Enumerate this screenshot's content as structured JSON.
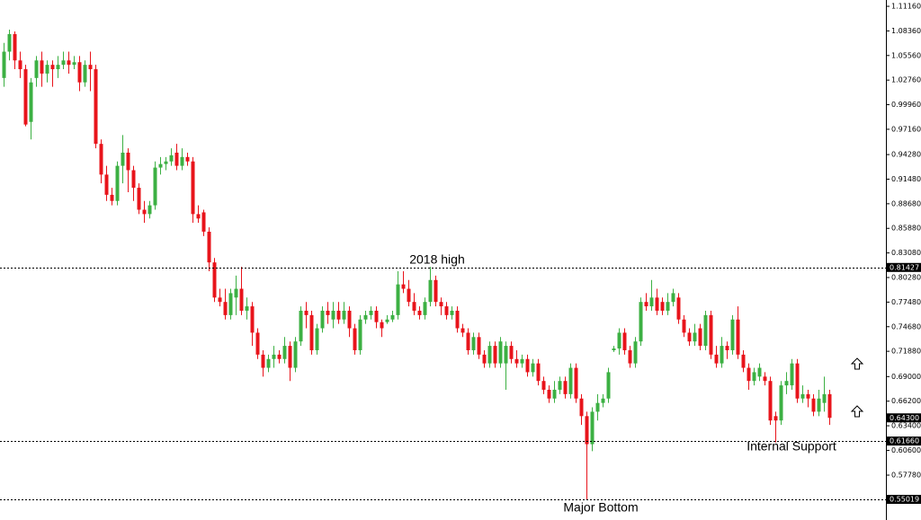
{
  "chart_data": {
    "type": "candlestick",
    "open": [
      1.03,
      1.06,
      1.08,
      1.05,
      1.04,
      0.98,
      1.03,
      1.05,
      1.035,
      1.045,
      1.04,
      1.045,
      1.05,
      1.045,
      1.048,
      1.025,
      1.045,
      1.04,
      0.955,
      0.92,
      0.897,
      0.89,
      0.93,
      0.945,
      0.925,
      0.905,
      0.88,
      0.875,
      0.885,
      0.928,
      0.932,
      0.935,
      0.945,
      0.93,
      0.94,
      0.935,
      0.875,
      0.877,
      0.855,
      0.82,
      0.78,
      0.775,
      0.76,
      0.78,
      0.79,
      0.765,
      0.77,
      0.74,
      0.715,
      0.7,
      0.71,
      0.715,
      0.71,
      0.725,
      0.7,
      0.73,
      0.765,
      0.76,
      0.72,
      0.745,
      0.765,
      0.755,
      0.765,
      0.755,
      0.765,
      0.745,
      0.72,
      0.755,
      0.76,
      0.765,
      0.752,
      0.752,
      0.755,
      0.76,
      0.795,
      0.79,
      0.775,
      0.765,
      0.76,
      0.775,
      0.8,
      0.775,
      0.77,
      0.76,
      0.765,
      0.745,
      0.74,
      0.72,
      0.735,
      0.715,
      0.705,
      0.725,
      0.705,
      0.705,
      0.725,
      0.71,
      0.705,
      0.71,
      0.695,
      0.705,
      0.685,
      0.675,
      0.665,
      0.675,
      0.685,
      0.67,
      0.7,
      0.665,
      0.645,
      0.613,
      0.65,
      0.66,
      0.665,
      0.72,
      0.722,
      0.74,
      0.72,
      0.705,
      0.73,
      0.775,
      0.77,
      0.78,
      0.775,
      0.765,
      0.775,
      0.78,
      0.755,
      0.74,
      0.73,
      0.745,
      0.725,
      0.76,
      0.715,
      0.705,
      0.725,
      0.72,
      0.755,
      0.715,
      0.7,
      0.685,
      0.69,
      0.69,
      0.685,
      0.645,
      0.64,
      0.68,
      0.68,
      0.705,
      0.665,
      0.67,
      0.665,
      0.65,
      0.66,
      0.67
    ],
    "high": [
      1.07,
      1.085,
      1.083,
      1.06,
      1.045,
      1.03,
      1.055,
      1.06,
      1.05,
      1.05,
      1.055,
      1.06,
      1.06,
      1.055,
      1.055,
      1.05,
      1.06,
      1.045,
      0.96,
      0.93,
      0.905,
      0.935,
      0.965,
      0.95,
      0.93,
      0.91,
      0.89,
      0.89,
      0.935,
      0.94,
      0.94,
      0.95,
      0.955,
      0.95,
      0.945,
      0.94,
      0.885,
      0.88,
      0.86,
      0.825,
      0.79,
      0.79,
      0.79,
      0.805,
      0.815,
      0.78,
      0.775,
      0.745,
      0.72,
      0.715,
      0.725,
      0.72,
      0.735,
      0.73,
      0.735,
      0.77,
      0.775,
      0.765,
      0.75,
      0.77,
      0.775,
      0.775,
      0.775,
      0.775,
      0.77,
      0.75,
      0.76,
      0.765,
      0.77,
      0.77,
      0.755,
      0.76,
      0.765,
      0.81,
      0.81,
      0.8,
      0.785,
      0.77,
      0.78,
      0.815,
      0.805,
      0.78,
      0.775,
      0.77,
      0.77,
      0.75,
      0.745,
      0.74,
      0.74,
      0.72,
      0.73,
      0.73,
      0.735,
      0.73,
      0.73,
      0.72,
      0.715,
      0.715,
      0.71,
      0.71,
      0.69,
      0.68,
      0.685,
      0.69,
      0.69,
      0.705,
      0.705,
      0.67,
      0.65,
      0.655,
      0.67,
      0.67,
      0.7,
      0.725,
      0.745,
      0.745,
      0.725,
      0.735,
      0.78,
      0.785,
      0.8,
      0.79,
      0.78,
      0.785,
      0.79,
      0.785,
      0.76,
      0.745,
      0.75,
      0.75,
      0.765,
      0.765,
      0.725,
      0.735,
      0.73,
      0.76,
      0.77,
      0.72,
      0.705,
      0.7,
      0.705,
      0.695,
      0.69,
      0.65,
      0.685,
      0.695,
      0.71,
      0.71,
      0.68,
      0.675,
      0.67,
      0.675,
      0.69,
      0.675
    ],
    "low": [
      1.02,
      1.05,
      1.04,
      1.03,
      0.975,
      0.96,
      1.02,
      1.02,
      1.025,
      1.02,
      1.03,
      1.04,
      1.035,
      1.04,
      1.015,
      1.02,
      1.015,
      0.95,
      0.91,
      0.89,
      0.885,
      0.885,
      0.91,
      0.9,
      0.89,
      0.875,
      0.865,
      0.87,
      0.88,
      0.92,
      0.925,
      0.93,
      0.925,
      0.925,
      0.93,
      0.865,
      0.865,
      0.85,
      0.81,
      0.775,
      0.77,
      0.755,
      0.755,
      0.76,
      0.76,
      0.755,
      0.725,
      0.71,
      0.69,
      0.695,
      0.7,
      0.705,
      0.705,
      0.685,
      0.695,
      0.725,
      0.745,
      0.715,
      0.715,
      0.74,
      0.75,
      0.745,
      0.75,
      0.75,
      0.735,
      0.715,
      0.715,
      0.75,
      0.755,
      0.745,
      0.735,
      0.75,
      0.752,
      0.755,
      0.785,
      0.77,
      0.76,
      0.755,
      0.755,
      0.77,
      0.77,
      0.76,
      0.755,
      0.755,
      0.74,
      0.735,
      0.715,
      0.715,
      0.71,
      0.7,
      0.7,
      0.7,
      0.7,
      0.675,
      0.705,
      0.7,
      0.7,
      0.69,
      0.69,
      0.68,
      0.67,
      0.66,
      0.66,
      0.67,
      0.665,
      0.665,
      0.66,
      0.635,
      0.5502,
      0.605,
      0.64,
      0.655,
      0.66,
      0.718,
      0.715,
      0.715,
      0.7,
      0.7,
      0.725,
      0.765,
      0.765,
      0.76,
      0.76,
      0.76,
      0.77,
      0.75,
      0.735,
      0.725,
      0.725,
      0.72,
      0.72,
      0.71,
      0.7,
      0.7,
      0.71,
      0.715,
      0.71,
      0.695,
      0.675,
      0.68,
      0.685,
      0.68,
      0.635,
      0.615,
      0.635,
      0.67,
      0.675,
      0.66,
      0.66,
      0.655,
      0.645,
      0.645,
      0.65,
      0.635
    ],
    "close": [
      1.06,
      1.08,
      1.05,
      1.04,
      0.977,
      1.025,
      1.05,
      1.035,
      1.045,
      1.04,
      1.045,
      1.05,
      1.045,
      1.048,
      1.025,
      1.045,
      1.04,
      0.955,
      0.92,
      0.897,
      0.89,
      0.93,
      0.945,
      0.925,
      0.905,
      0.88,
      0.875,
      0.885,
      0.928,
      0.932,
      0.935,
      0.942,
      0.93,
      0.94,
      0.935,
      0.875,
      0.87,
      0.855,
      0.82,
      0.78,
      0.775,
      0.76,
      0.785,
      0.79,
      0.765,
      0.77,
      0.74,
      0.715,
      0.7,
      0.71,
      0.715,
      0.71,
      0.725,
      0.7,
      0.73,
      0.765,
      0.76,
      0.72,
      0.745,
      0.765,
      0.76,
      0.765,
      0.755,
      0.765,
      0.745,
      0.72,
      0.755,
      0.76,
      0.765,
      0.752,
      0.745,
      0.755,
      0.76,
      0.795,
      0.79,
      0.775,
      0.765,
      0.76,
      0.775,
      0.8,
      0.775,
      0.77,
      0.76,
      0.765,
      0.745,
      0.74,
      0.72,
      0.735,
      0.715,
      0.705,
      0.725,
      0.705,
      0.73,
      0.725,
      0.71,
      0.705,
      0.71,
      0.695,
      0.705,
      0.685,
      0.675,
      0.665,
      0.675,
      0.685,
      0.67,
      0.7,
      0.665,
      0.645,
      0.613,
      0.65,
      0.66,
      0.665,
      0.695,
      0.722,
      0.74,
      0.72,
      0.705,
      0.73,
      0.775,
      0.77,
      0.78,
      0.765,
      0.765,
      0.775,
      0.785,
      0.755,
      0.74,
      0.73,
      0.74,
      0.725,
      0.76,
      0.715,
      0.705,
      0.725,
      0.72,
      0.755,
      0.715,
      0.7,
      0.685,
      0.695,
      0.7,
      0.685,
      0.64,
      0.64,
      0.68,
      0.685,
      0.705,
      0.665,
      0.67,
      0.665,
      0.65,
      0.665,
      0.67,
      0.643
    ],
    "up_color": "#3cb043",
    "down_color": "#e8141b",
    "ylim": [
      0.5267,
      1.1188
    ],
    "yticks": [
      {
        "value": 1.1116,
        "label": "1.11160"
      },
      {
        "value": 1.0836,
        "label": "1.08360"
      },
      {
        "value": 1.0556,
        "label": "1.05560"
      },
      {
        "value": 1.0276,
        "label": "1.02760"
      },
      {
        "value": 0.9996,
        "label": "0.99960"
      },
      {
        "value": 0.9716,
        "label": "0.97160"
      },
      {
        "value": 0.9428,
        "label": "0.94280"
      },
      {
        "value": 0.9148,
        "label": "0.91480"
      },
      {
        "value": 0.8868,
        "label": "0.88680"
      },
      {
        "value": 0.8588,
        "label": "0.85880"
      },
      {
        "value": 0.8308,
        "label": "0.83080"
      },
      {
        "value": 0.8028,
        "label": "0.80280"
      },
      {
        "value": 0.7748,
        "label": "0.77480"
      },
      {
        "value": 0.7468,
        "label": "0.74680"
      },
      {
        "value": 0.7188,
        "label": "0.71880"
      },
      {
        "value": 0.69,
        "label": "0.69000"
      },
      {
        "value": 0.662,
        "label": "0.66200"
      },
      {
        "value": 0.634,
        "label": "0.63400"
      },
      {
        "value": 0.606,
        "label": "0.60600"
      },
      {
        "value": 0.5778,
        "label": "0.57780"
      }
    ],
    "hlines": [
      {
        "value": 0.81427,
        "label": "0.81427"
      },
      {
        "value": 0.6166,
        "label": "0.61660"
      },
      {
        "value": 0.55019,
        "label": "0.55019"
      }
    ],
    "price_marker": {
      "value": 0.643,
      "label": "0.64300"
    },
    "annotations": [
      {
        "text": "2018 high"
      },
      {
        "text": "Internal Support"
      },
      {
        "text": "Major Bottom"
      }
    ]
  }
}
